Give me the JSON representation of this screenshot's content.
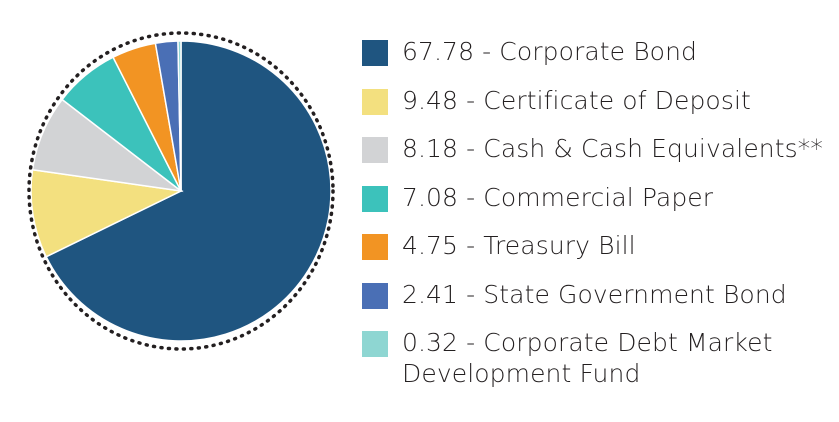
{
  "chart_data": {
    "type": "pie",
    "title": "",
    "slices": [
      {
        "value": 67.78,
        "label": "67.78 - Corporate Bond",
        "color": "#1f5580"
      },
      {
        "value": 9.48,
        "label": "9.48 - Certificate of Deposit",
        "color": "#f3e07f"
      },
      {
        "value": 8.18,
        "label": "8.18 - Cash & Cash Equivalents**",
        "color": "#d2d3d5"
      },
      {
        "value": 7.08,
        "label": "7.08 - Commercial Paper",
        "color": "#3cc2bb"
      },
      {
        "value": 4.75,
        "label": "4.75 - Treasury Bill",
        "color": "#f29423"
      },
      {
        "value": 2.41,
        "label": "2.41 - State Government Bond",
        "color": "#4a6fb5"
      },
      {
        "value": 0.32,
        "label": "0.32 - Corporate Debt Market\nDevelopment Fund",
        "color": "#8ed6d2"
      }
    ],
    "start": "12 o'clock",
    "direction": "clockwise",
    "outline": "dotted black circle",
    "legend_position": "right"
  }
}
